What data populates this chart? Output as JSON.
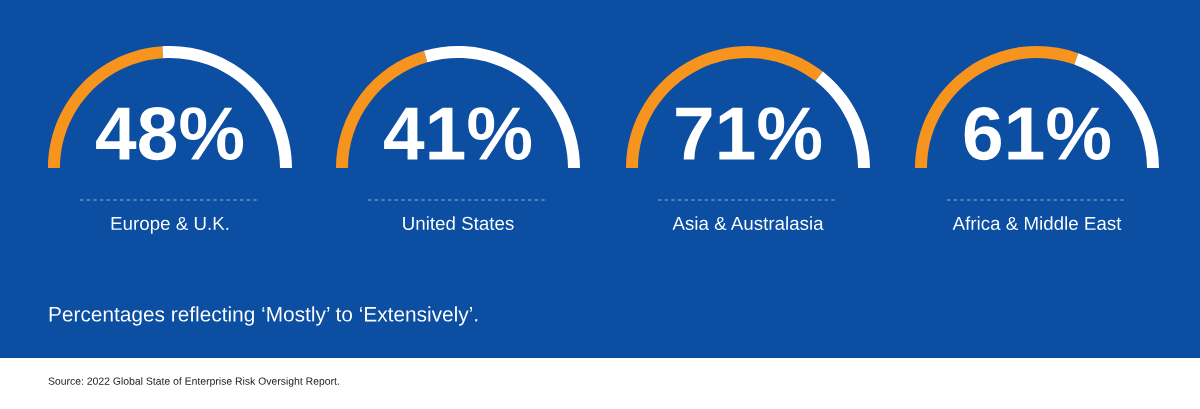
{
  "chart_data": [
    {
      "type": "donut",
      "title": "Europe & U.K.",
      "categories": [
        null,
        null
      ],
      "values": [
        48,
        52
      ],
      "colors": [
        "#f7941d",
        "#ffffff"
      ],
      "annotations": [
        "48%",
        "Percentages reflecting ‘Mostly’ to ‘Extensively’.",
        "Source: 2022 Global State of Enterprise Risk Oversight Report."
      ]
    },
    {
      "type": "donut",
      "title": "United States",
      "categories": [
        null,
        null
      ],
      "values": [
        41,
        59
      ],
      "colors": [
        "#f7941d",
        "#ffffff"
      ],
      "annotations": [
        "41%"
      ]
    },
    {
      "type": "donut",
      "title": "Asia & Australasia",
      "categories": [
        null,
        null
      ],
      "values": [
        71,
        29
      ],
      "colors": [
        "#f7941d",
        "#ffffff"
      ],
      "annotations": [
        "71%"
      ]
    },
    {
      "type": "donut",
      "title": "Africa & Middle East",
      "categories": [
        null,
        null
      ],
      "values": [
        61,
        39
      ],
      "colors": [
        "#f7941d",
        "#ffffff"
      ],
      "annotations": [
        "61%"
      ]
    }
  ]
}
